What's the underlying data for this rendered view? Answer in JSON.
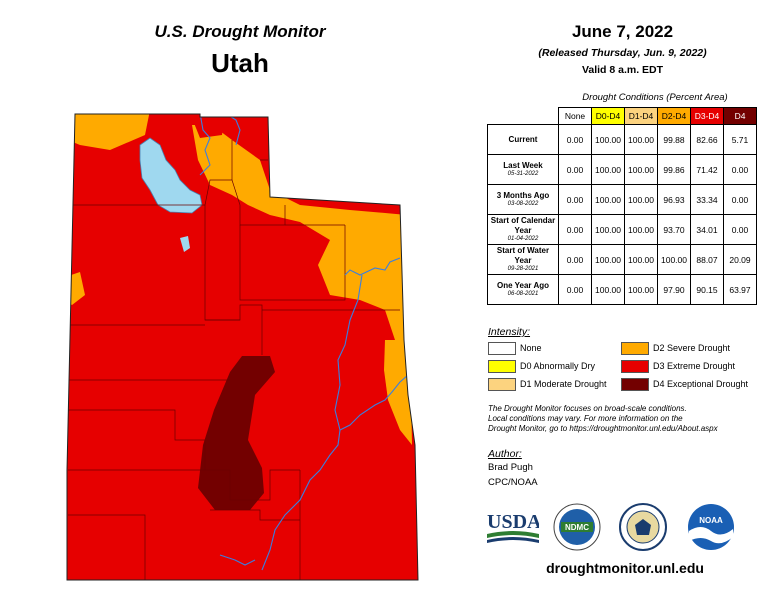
{
  "header": {
    "title": "U.S. Drought Monitor",
    "state": "Utah",
    "date": "June 7, 2022",
    "released": "(Released Thursday, Jun. 9, 2022)",
    "valid": "Valid 8 a.m. EDT"
  },
  "conditions": {
    "title": "Drought Conditions (Percent Area)",
    "columns": [
      "None",
      "D0-D4",
      "D1-D4",
      "D2-D4",
      "D3-D4",
      "D4"
    ],
    "column_colors": [
      "#ffffff",
      "#ffff00",
      "#fcd37f",
      "#ffaa00",
      "#e60000",
      "#730000"
    ],
    "rows": [
      {
        "label": "Current",
        "date": "",
        "values": [
          "0.00",
          "100.00",
          "100.00",
          "99.88",
          "82.66",
          "5.71"
        ]
      },
      {
        "label": "Last Week",
        "date": "05-31-2022",
        "values": [
          "0.00",
          "100.00",
          "100.00",
          "99.86",
          "71.42",
          "0.00"
        ]
      },
      {
        "label": "3 Months Ago",
        "date": "03-08-2022",
        "values": [
          "0.00",
          "100.00",
          "100.00",
          "96.93",
          "33.34",
          "0.00"
        ]
      },
      {
        "label": "Start of Calendar Year",
        "date": "01-04-2022",
        "values": [
          "0.00",
          "100.00",
          "100.00",
          "93.70",
          "34.01",
          "0.00"
        ]
      },
      {
        "label": "Start of Water Year",
        "date": "09-28-2021",
        "values": [
          "0.00",
          "100.00",
          "100.00",
          "100.00",
          "88.07",
          "20.09"
        ]
      },
      {
        "label": "One Year Ago",
        "date": "06-08-2021",
        "values": [
          "0.00",
          "100.00",
          "100.00",
          "97.90",
          "90.15",
          "63.97"
        ]
      }
    ]
  },
  "legend": {
    "title": "Intensity:",
    "items": [
      {
        "label": "None",
        "color": "#ffffff"
      },
      {
        "label": "D0 Abnormally Dry",
        "color": "#ffff00"
      },
      {
        "label": "D1 Moderate Drought",
        "color": "#fcd37f"
      },
      {
        "label": "D2 Severe Drought",
        "color": "#ffaa00"
      },
      {
        "label": "D3 Extreme Drought",
        "color": "#e60000"
      },
      {
        "label": "D4 Exceptional Drought",
        "color": "#730000"
      }
    ]
  },
  "note": {
    "line1": "The Drought Monitor focuses on broad-scale conditions.",
    "line2": "Local conditions may vary. For more information on the",
    "line3": "Drought Monitor, go to https://droughtmonitor.unl.edu/About.aspx"
  },
  "author": {
    "title": "Author:",
    "name": "Brad Pugh",
    "org": "CPC/NOAA"
  },
  "logos": {
    "usda": "USDA",
    "ndmc": "NDMC",
    "noaa": "NOAA"
  },
  "footer": {
    "url": "droughtmonitor.unl.edu"
  },
  "map_colors": {
    "d2": "#ffaa00",
    "d3": "#e60000",
    "d4": "#730000",
    "lake": "#9fd8ef",
    "river": "#3a7fe0"
  }
}
